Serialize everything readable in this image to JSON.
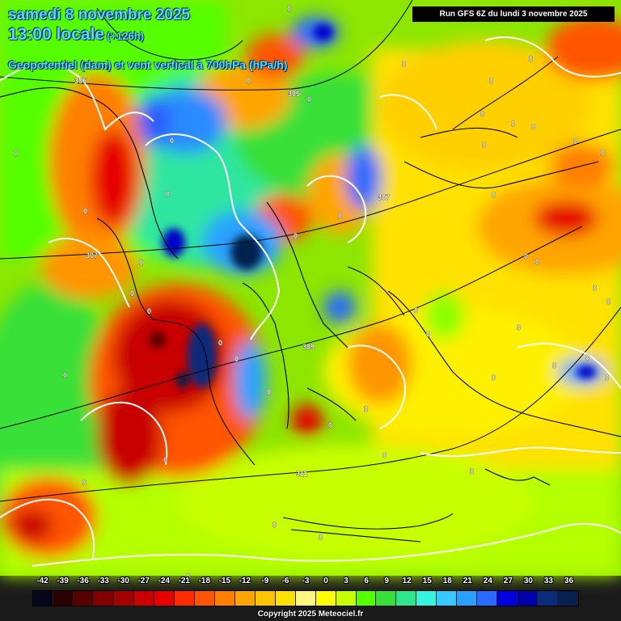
{
  "header": {
    "date_line": "samedi 8 novembre 2025",
    "time_line": "13:00 locale",
    "lead_time": "(+126h)",
    "variable_line": "Geopotentiel (dam) et vent vertical à 700hPa (hPa/h)",
    "run_info": "Run GFS 6Z du lundi 3 novembre 2025"
  },
  "legend": {
    "ticks": [
      "-42",
      "-39",
      "-36",
      "-33",
      "-30",
      "-27",
      "-24",
      "-21",
      "-18",
      "-15",
      "-12",
      "-9",
      "-6",
      "-3",
      "0",
      "3",
      "6",
      "9",
      "12",
      "15",
      "18",
      "21",
      "24",
      "27",
      "30",
      "33",
      "36"
    ],
    "colors": [
      "#06061a",
      "#2a0000",
      "#560000",
      "#800000",
      "#a30000",
      "#c80000",
      "#e60000",
      "#ff2a00",
      "#ff5500",
      "#ff7f00",
      "#ffa500",
      "#ffc400",
      "#ffe100",
      "#fff880",
      "#ffff00",
      "#c8ff00",
      "#55ff00",
      "#39e039",
      "#2ee68c",
      "#36f5e0",
      "#36c8ff",
      "#2aa0ff",
      "#2a6aff",
      "#0000e0",
      "#0000a8",
      "#0a2a7a",
      "#062050"
    ]
  },
  "map_labels": {
    "isohypses": [
      "305",
      "305",
      "307",
      "307",
      "309",
      "311"
    ],
    "contour_zero": "0"
  },
  "footer": {
    "copyright": "Copyright 2025 Meteociel.fr"
  }
}
